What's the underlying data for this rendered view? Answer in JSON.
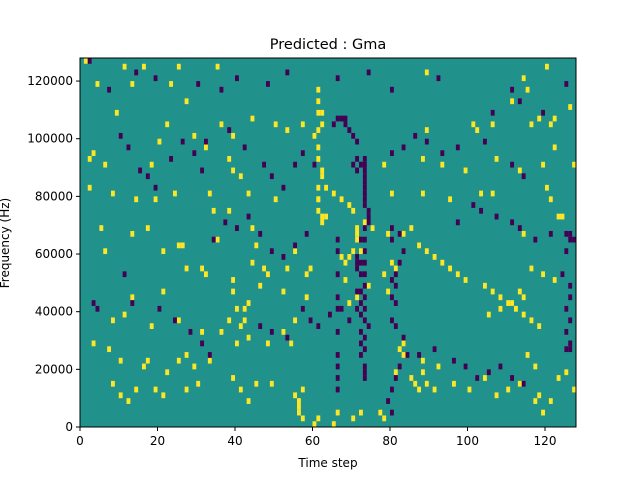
{
  "chart_data": {
    "type": "heatmap",
    "title": "Predicted : Gma",
    "xlabel": "Time step",
    "ylabel": "Frequency (Hz)",
    "xlim": [
      0,
      128
    ],
    "ylim": [
      0,
      128000
    ],
    "xticks": [
      0,
      20,
      40,
      60,
      80,
      100,
      120
    ],
    "yticks": [
      0,
      20000,
      40000,
      60000,
      80000,
      100000,
      120000
    ],
    "grid": false,
    "legend": "none",
    "colormap": "viridis",
    "colors": {
      "background": "#21918c",
      "high": "#fde725",
      "low": "#440154"
    },
    "bin_height": 2000,
    "high_cells": [
      [
        1,
        127000
      ],
      [
        4,
        119000
      ],
      [
        11,
        125000
      ],
      [
        13,
        119000
      ],
      [
        16,
        125000
      ],
      [
        23,
        119000
      ],
      [
        25,
        125000
      ],
      [
        27,
        113000
      ],
      [
        35,
        125000
      ],
      [
        89,
        123000
      ],
      [
        111,
        113000
      ],
      [
        114,
        121000
      ],
      [
        115,
        117000
      ],
      [
        120,
        125000
      ],
      [
        122,
        107000
      ],
      [
        126,
        111000
      ],
      [
        61,
        117000
      ],
      [
        61,
        113000
      ],
      [
        61,
        109000
      ],
      [
        62,
        109000
      ],
      [
        62,
        105000
      ],
      [
        61,
        103000
      ],
      [
        60,
        101000
      ],
      [
        61,
        97000
      ],
      [
        61,
        93000
      ],
      [
        62,
        89000
      ],
      [
        62,
        87000
      ],
      [
        61,
        83000
      ],
      [
        61,
        79000
      ],
      [
        61,
        75000
      ],
      [
        62,
        73000
      ],
      [
        63,
        73000
      ],
      [
        62,
        71000
      ],
      [
        71,
        69000
      ],
      [
        71,
        67000
      ],
      [
        71,
        65000
      ],
      [
        72,
        61000
      ],
      [
        69,
        59000
      ],
      [
        70,
        61000
      ],
      [
        9,
        109000
      ],
      [
        22,
        105000
      ],
      [
        29,
        101000
      ],
      [
        36,
        105000
      ],
      [
        39,
        101000
      ],
      [
        44,
        107000
      ],
      [
        50,
        105000
      ],
      [
        53,
        103000
      ],
      [
        57,
        105000
      ],
      [
        89,
        103000
      ],
      [
        101,
        105000
      ],
      [
        102,
        103000
      ],
      [
        106,
        105000
      ],
      [
        116,
        105000
      ],
      [
        118,
        107000
      ],
      [
        121,
        105000
      ],
      [
        3,
        95000
      ],
      [
        2,
        93000
      ],
      [
        6,
        91000
      ],
      [
        18,
        91000
      ],
      [
        20,
        99000
      ],
      [
        32,
        97000
      ],
      [
        38,
        93000
      ],
      [
        39,
        89000
      ],
      [
        41,
        87000
      ],
      [
        78,
        91000
      ],
      [
        88,
        93000
      ],
      [
        93,
        91000
      ],
      [
        99,
        89000
      ],
      [
        107,
        93000
      ],
      [
        113,
        89000
      ],
      [
        119,
        91000
      ],
      [
        122,
        97000
      ],
      [
        127,
        91000
      ],
      [
        2,
        83000
      ],
      [
        8,
        81000
      ],
      [
        14,
        79000
      ],
      [
        19,
        79000
      ],
      [
        24,
        81000
      ],
      [
        33,
        81000
      ],
      [
        34,
        75000
      ],
      [
        38,
        75000
      ],
      [
        43,
        81000
      ],
      [
        50,
        79000
      ],
      [
        80,
        81000
      ],
      [
        88,
        81000
      ],
      [
        95,
        79000
      ],
      [
        103,
        81000
      ],
      [
        106,
        81000
      ],
      [
        120,
        83000
      ],
      [
        121,
        79000
      ],
      [
        123,
        73000
      ],
      [
        124,
        73000
      ],
      [
        5,
        69000
      ],
      [
        6,
        61000
      ],
      [
        13,
        67000
      ],
      [
        17,
        69000
      ],
      [
        21,
        61000
      ],
      [
        26,
        63000
      ],
      [
        35,
        65000
      ],
      [
        44,
        69000
      ],
      [
        45,
        63000
      ],
      [
        44,
        57000
      ],
      [
        39,
        51000
      ],
      [
        39,
        47000
      ],
      [
        32,
        53000
      ],
      [
        31,
        55000
      ],
      [
        27,
        55000
      ],
      [
        25,
        63000
      ],
      [
        21,
        47000
      ],
      [
        13,
        45000
      ],
      [
        46,
        49000
      ],
      [
        47,
        55000
      ],
      [
        48,
        53000
      ],
      [
        52,
        47000
      ],
      [
        53,
        55000
      ],
      [
        55,
        61000
      ],
      [
        58,
        53000
      ],
      [
        59,
        55000
      ],
      [
        58,
        45000
      ],
      [
        67,
        59000
      ],
      [
        68,
        57000
      ],
      [
        68,
        51000
      ],
      [
        69,
        43000
      ],
      [
        71,
        45000
      ],
      [
        74,
        49000
      ],
      [
        78,
        53000
      ],
      [
        80,
        57000
      ],
      [
        81,
        55000
      ],
      [
        79,
        47000
      ],
      [
        114,
        67000
      ],
      [
        116,
        55000
      ],
      [
        119,
        53000
      ],
      [
        122,
        51000
      ],
      [
        113,
        47000
      ],
      [
        114,
        45000
      ],
      [
        111,
        43000
      ],
      [
        108,
        41000
      ],
      [
        105,
        39000
      ],
      [
        8,
        37000
      ],
      [
        11,
        39000
      ],
      [
        18,
        35000
      ],
      [
        25,
        37000
      ],
      [
        31,
        33000
      ],
      [
        36,
        33000
      ],
      [
        38,
        37000
      ],
      [
        42,
        37000
      ],
      [
        43,
        43000
      ],
      [
        43,
        31000
      ],
      [
        42,
        41000
      ],
      [
        40,
        41000
      ],
      [
        41,
        35000
      ],
      [
        40,
        29000
      ],
      [
        48,
        29000
      ],
      [
        52,
        33000
      ],
      [
        55,
        37000
      ],
      [
        54,
        29000
      ],
      [
        3,
        29000
      ],
      [
        7,
        27000
      ],
      [
        10,
        23000
      ],
      [
        17,
        23000
      ],
      [
        22,
        19000
      ],
      [
        25,
        23000
      ],
      [
        27,
        25000
      ],
      [
        29,
        21000
      ],
      [
        33,
        23000
      ],
      [
        39,
        17000
      ],
      [
        41,
        13000
      ],
      [
        43,
        9000
      ],
      [
        45,
        15000
      ],
      [
        49,
        15000
      ],
      [
        55,
        11000
      ],
      [
        57,
        13000
      ],
      [
        56,
        9000
      ],
      [
        56,
        7000
      ],
      [
        83,
        25000
      ],
      [
        88,
        23000
      ],
      [
        92,
        21000
      ],
      [
        96,
        15000
      ],
      [
        100,
        13000
      ],
      [
        104,
        17000
      ],
      [
        107,
        11000
      ],
      [
        110,
        13000
      ],
      [
        113,
        15000
      ],
      [
        115,
        25000
      ],
      [
        117,
        21000
      ],
      [
        117,
        9000
      ],
      [
        118,
        11000
      ],
      [
        119,
        5000
      ],
      [
        121,
        9000
      ],
      [
        123,
        17000
      ],
      [
        125,
        19000
      ],
      [
        127,
        13000
      ],
      [
        8,
        15000
      ],
      [
        10,
        11000
      ],
      [
        12,
        9000
      ],
      [
        14,
        13000
      ],
      [
        16,
        21000
      ],
      [
        19,
        13000
      ],
      [
        21,
        11000
      ],
      [
        27,
        13000
      ],
      [
        30,
        15000
      ],
      [
        81,
        19000
      ],
      [
        82,
        27000
      ],
      [
        83,
        29000
      ],
      [
        85,
        17000
      ],
      [
        86,
        15000
      ],
      [
        87,
        13000
      ],
      [
        88,
        19000
      ],
      [
        89,
        15000
      ],
      [
        91,
        13000
      ],
      [
        56,
        5000
      ],
      [
        57,
        3000
      ],
      [
        60,
        1000
      ],
      [
        61,
        3000
      ],
      [
        65,
        1000
      ],
      [
        66,
        5000
      ],
      [
        70,
        3000
      ],
      [
        72,
        5000
      ],
      [
        77,
        5000
      ],
      [
        78,
        3000
      ],
      [
        61,
        79000
      ],
      [
        63,
        83000
      ],
      [
        65,
        81000
      ],
      [
        67,
        79000
      ],
      [
        69,
        77000
      ],
      [
        70,
        75000
      ],
      [
        73,
        71000
      ],
      [
        75,
        69000
      ],
      [
        79,
        67000
      ],
      [
        83,
        67000
      ],
      [
        85,
        69000
      ],
      [
        87,
        63000
      ],
      [
        89,
        61000
      ],
      [
        91,
        59000
      ],
      [
        93,
        57000
      ],
      [
        95,
        55000
      ],
      [
        97,
        53000
      ],
      [
        99,
        51000
      ],
      [
        104,
        49000
      ],
      [
        106,
        47000
      ],
      [
        108,
        45000
      ],
      [
        110,
        43000
      ],
      [
        112,
        41000
      ],
      [
        114,
        39000
      ],
      [
        116,
        37000
      ],
      [
        118,
        35000
      ]
    ],
    "low_cells": [
      [
        2,
        127000
      ],
      [
        7,
        117000
      ],
      [
        14,
        123000
      ],
      [
        19,
        121000
      ],
      [
        30,
        119000
      ],
      [
        36,
        117000
      ],
      [
        40,
        121000
      ],
      [
        48,
        119000
      ],
      [
        53,
        123000
      ],
      [
        66,
        121000
      ],
      [
        74,
        123000
      ],
      [
        80,
        117000
      ],
      [
        92,
        121000
      ],
      [
        106,
        109000
      ],
      [
        111,
        117000
      ],
      [
        113,
        113000
      ],
      [
        119,
        109000
      ],
      [
        125,
        119000
      ],
      [
        65,
        105000
      ],
      [
        66,
        107000
      ],
      [
        67,
        107000
      ],
      [
        68,
        107000
      ],
      [
        68,
        105000
      ],
      [
        69,
        103000
      ],
      [
        70,
        101000
      ],
      [
        71,
        99000
      ],
      [
        73,
        93000
      ],
      [
        73,
        91000
      ],
      [
        73,
        89000
      ],
      [
        73,
        87000
      ],
      [
        73,
        85000
      ],
      [
        73,
        83000
      ],
      [
        73,
        81000
      ],
      [
        73,
        79000
      ],
      [
        73,
        77000
      ],
      [
        74,
        75000
      ],
      [
        74,
        73000
      ],
      [
        74,
        71000
      ],
      [
        73,
        69000
      ],
      [
        73,
        65000
      ],
      [
        73,
        61000
      ],
      [
        73,
        57000
      ],
      [
        73,
        53000
      ],
      [
        73,
        49000
      ],
      [
        73,
        45000
      ],
      [
        73,
        41000
      ],
      [
        73,
        37000
      ],
      [
        74,
        35000
      ],
      [
        73,
        31000
      ],
      [
        73,
        27000
      ],
      [
        73,
        21000
      ],
      [
        73,
        19000
      ],
      [
        73,
        17000
      ],
      [
        72,
        65000
      ],
      [
        72,
        57000
      ],
      [
        72,
        53000
      ],
      [
        72,
        47000
      ],
      [
        72,
        43000
      ],
      [
        72,
        39000
      ],
      [
        72,
        33000
      ],
      [
        72,
        29000
      ],
      [
        72,
        25000
      ],
      [
        66,
        65000
      ],
      [
        66,
        61000
      ],
      [
        66,
        53000
      ],
      [
        66,
        45000
      ],
      [
        66,
        41000
      ],
      [
        66,
        33000
      ],
      [
        66,
        25000
      ],
      [
        66,
        21000
      ],
      [
        66,
        17000
      ],
      [
        66,
        13000
      ],
      [
        70,
        91000
      ],
      [
        71,
        89000
      ],
      [
        71,
        93000
      ],
      [
        72,
        91000
      ],
      [
        71,
        59000
      ],
      [
        71,
        57000
      ],
      [
        71,
        55000
      ],
      [
        71,
        47000
      ],
      [
        71,
        41000
      ],
      [
        80,
        69000
      ],
      [
        80,
        65000
      ],
      [
        82,
        67000
      ],
      [
        83,
        61000
      ],
      [
        82,
        57000
      ],
      [
        81,
        53000
      ],
      [
        80,
        51000
      ],
      [
        81,
        49000
      ],
      [
        80,
        45000
      ],
      [
        81,
        43000
      ],
      [
        80,
        37000
      ],
      [
        81,
        35000
      ],
      [
        83,
        31000
      ],
      [
        84,
        25000
      ],
      [
        82,
        21000
      ],
      [
        81,
        17000
      ],
      [
        80,
        13000
      ],
      [
        79,
        9000
      ],
      [
        80,
        5000
      ],
      [
        32,
        99000
      ],
      [
        38,
        103000
      ],
      [
        42,
        97000
      ],
      [
        47,
        91000
      ],
      [
        49,
        87000
      ],
      [
        52,
        83000
      ],
      [
        55,
        91000
      ],
      [
        57,
        95000
      ],
      [
        60,
        91000
      ],
      [
        10,
        101000
      ],
      [
        12,
        97000
      ],
      [
        15,
        89000
      ],
      [
        17,
        87000
      ],
      [
        19,
        83000
      ],
      [
        23,
        93000
      ],
      [
        26,
        99000
      ],
      [
        29,
        95000
      ],
      [
        31,
        89000
      ],
      [
        3,
        43000
      ],
      [
        4,
        41000
      ],
      [
        11,
        53000
      ],
      [
        13,
        43000
      ],
      [
        20,
        41000
      ],
      [
        24,
        37000
      ],
      [
        28,
        33000
      ],
      [
        31,
        29000
      ],
      [
        33,
        25000
      ],
      [
        46,
        35000
      ],
      [
        49,
        33000
      ],
      [
        53,
        31000
      ],
      [
        57,
        41000
      ],
      [
        59,
        37000
      ],
      [
        61,
        35000
      ],
      [
        64,
        39000
      ],
      [
        67,
        41000
      ],
      [
        69,
        37000
      ],
      [
        87,
        25000
      ],
      [
        91,
        27000
      ],
      [
        96,
        23000
      ],
      [
        99,
        21000
      ],
      [
        102,
        17000
      ],
      [
        105,
        19000
      ],
      [
        108,
        21000
      ],
      [
        111,
        17000
      ],
      [
        114,
        15000
      ],
      [
        97,
        71000
      ],
      [
        101,
        77000
      ],
      [
        103,
        75000
      ],
      [
        107,
        73000
      ],
      [
        111,
        71000
      ],
      [
        113,
        69000
      ],
      [
        117,
        65000
      ],
      [
        121,
        67000
      ],
      [
        125,
        61000
      ],
      [
        124,
        53000
      ],
      [
        126,
        49000
      ],
      [
        126,
        45000
      ],
      [
        125,
        41000
      ],
      [
        126,
        37000
      ],
      [
        125,
        33000
      ],
      [
        126,
        29000
      ],
      [
        125,
        27000
      ],
      [
        126,
        27000
      ],
      [
        125,
        67000
      ],
      [
        126,
        67000
      ],
      [
        127,
        65000
      ],
      [
        126,
        65000
      ],
      [
        114,
        87000
      ],
      [
        111,
        91000
      ],
      [
        104,
        99000
      ],
      [
        97,
        97000
      ],
      [
        93,
        95000
      ],
      [
        89,
        99000
      ],
      [
        86,
        101000
      ],
      [
        83,
        97000
      ],
      [
        80,
        95000
      ],
      [
        34,
        65000
      ],
      [
        37,
        71000
      ],
      [
        40,
        69000
      ],
      [
        43,
        73000
      ],
      [
        46,
        67000
      ],
      [
        49,
        61000
      ],
      [
        52,
        59000
      ],
      [
        55,
        63000
      ],
      [
        58,
        67000
      ]
    ]
  }
}
